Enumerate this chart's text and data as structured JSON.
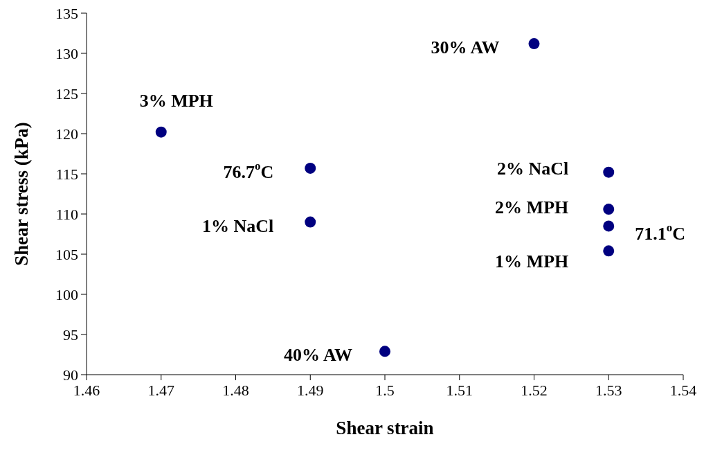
{
  "chart_data": {
    "type": "scatter",
    "xlabel": "Shear strain",
    "ylabel": "Shear stress (kPa)",
    "x": [
      1.52,
      1.47,
      1.49,
      1.49,
      1.53,
      1.53,
      1.53,
      1.53,
      1.5
    ],
    "values": [
      131.2,
      120.2,
      115.7,
      109.0,
      115.2,
      110.6,
      108.5,
      105.4,
      92.9
    ],
    "color": "#000080",
    "marker": "circle",
    "legend": false,
    "grid": false,
    "xlim": [
      1.46,
      1.54
    ],
    "xticks": [
      1.46,
      1.47,
      1.48,
      1.49,
      1.5,
      1.51,
      1.52,
      1.53,
      1.54
    ],
    "ylim": [
      90,
      135
    ],
    "yticks": [
      90,
      95,
      100,
      105,
      110,
      115,
      120,
      125,
      130,
      135
    ],
    "annotations": [
      {
        "text": "30% AW",
        "x": 1.52,
        "y": 131.2
      },
      {
        "text": "3% MPH",
        "x": 1.47,
        "y": 120.2
      },
      {
        "text": "76.7$^{o}$C",
        "x": 1.49,
        "y": 115.7
      },
      {
        "text": "1% NaCl",
        "x": 1.49,
        "y": 109.0
      },
      {
        "text": "2% NaCl",
        "x": 1.53,
        "y": 115.2
      },
      {
        "text": "2% MPH",
        "x": 1.53,
        "y": 110.6
      },
      {
        "text": "71.1$^{o}$C",
        "x": 1.53,
        "y": 108.5
      },
      {
        "text": "1% MPH",
        "x": 1.53,
        "y": 105.4
      },
      {
        "text": "40% AW",
        "x": 1.5,
        "y": 92.9
      }
    ]
  }
}
